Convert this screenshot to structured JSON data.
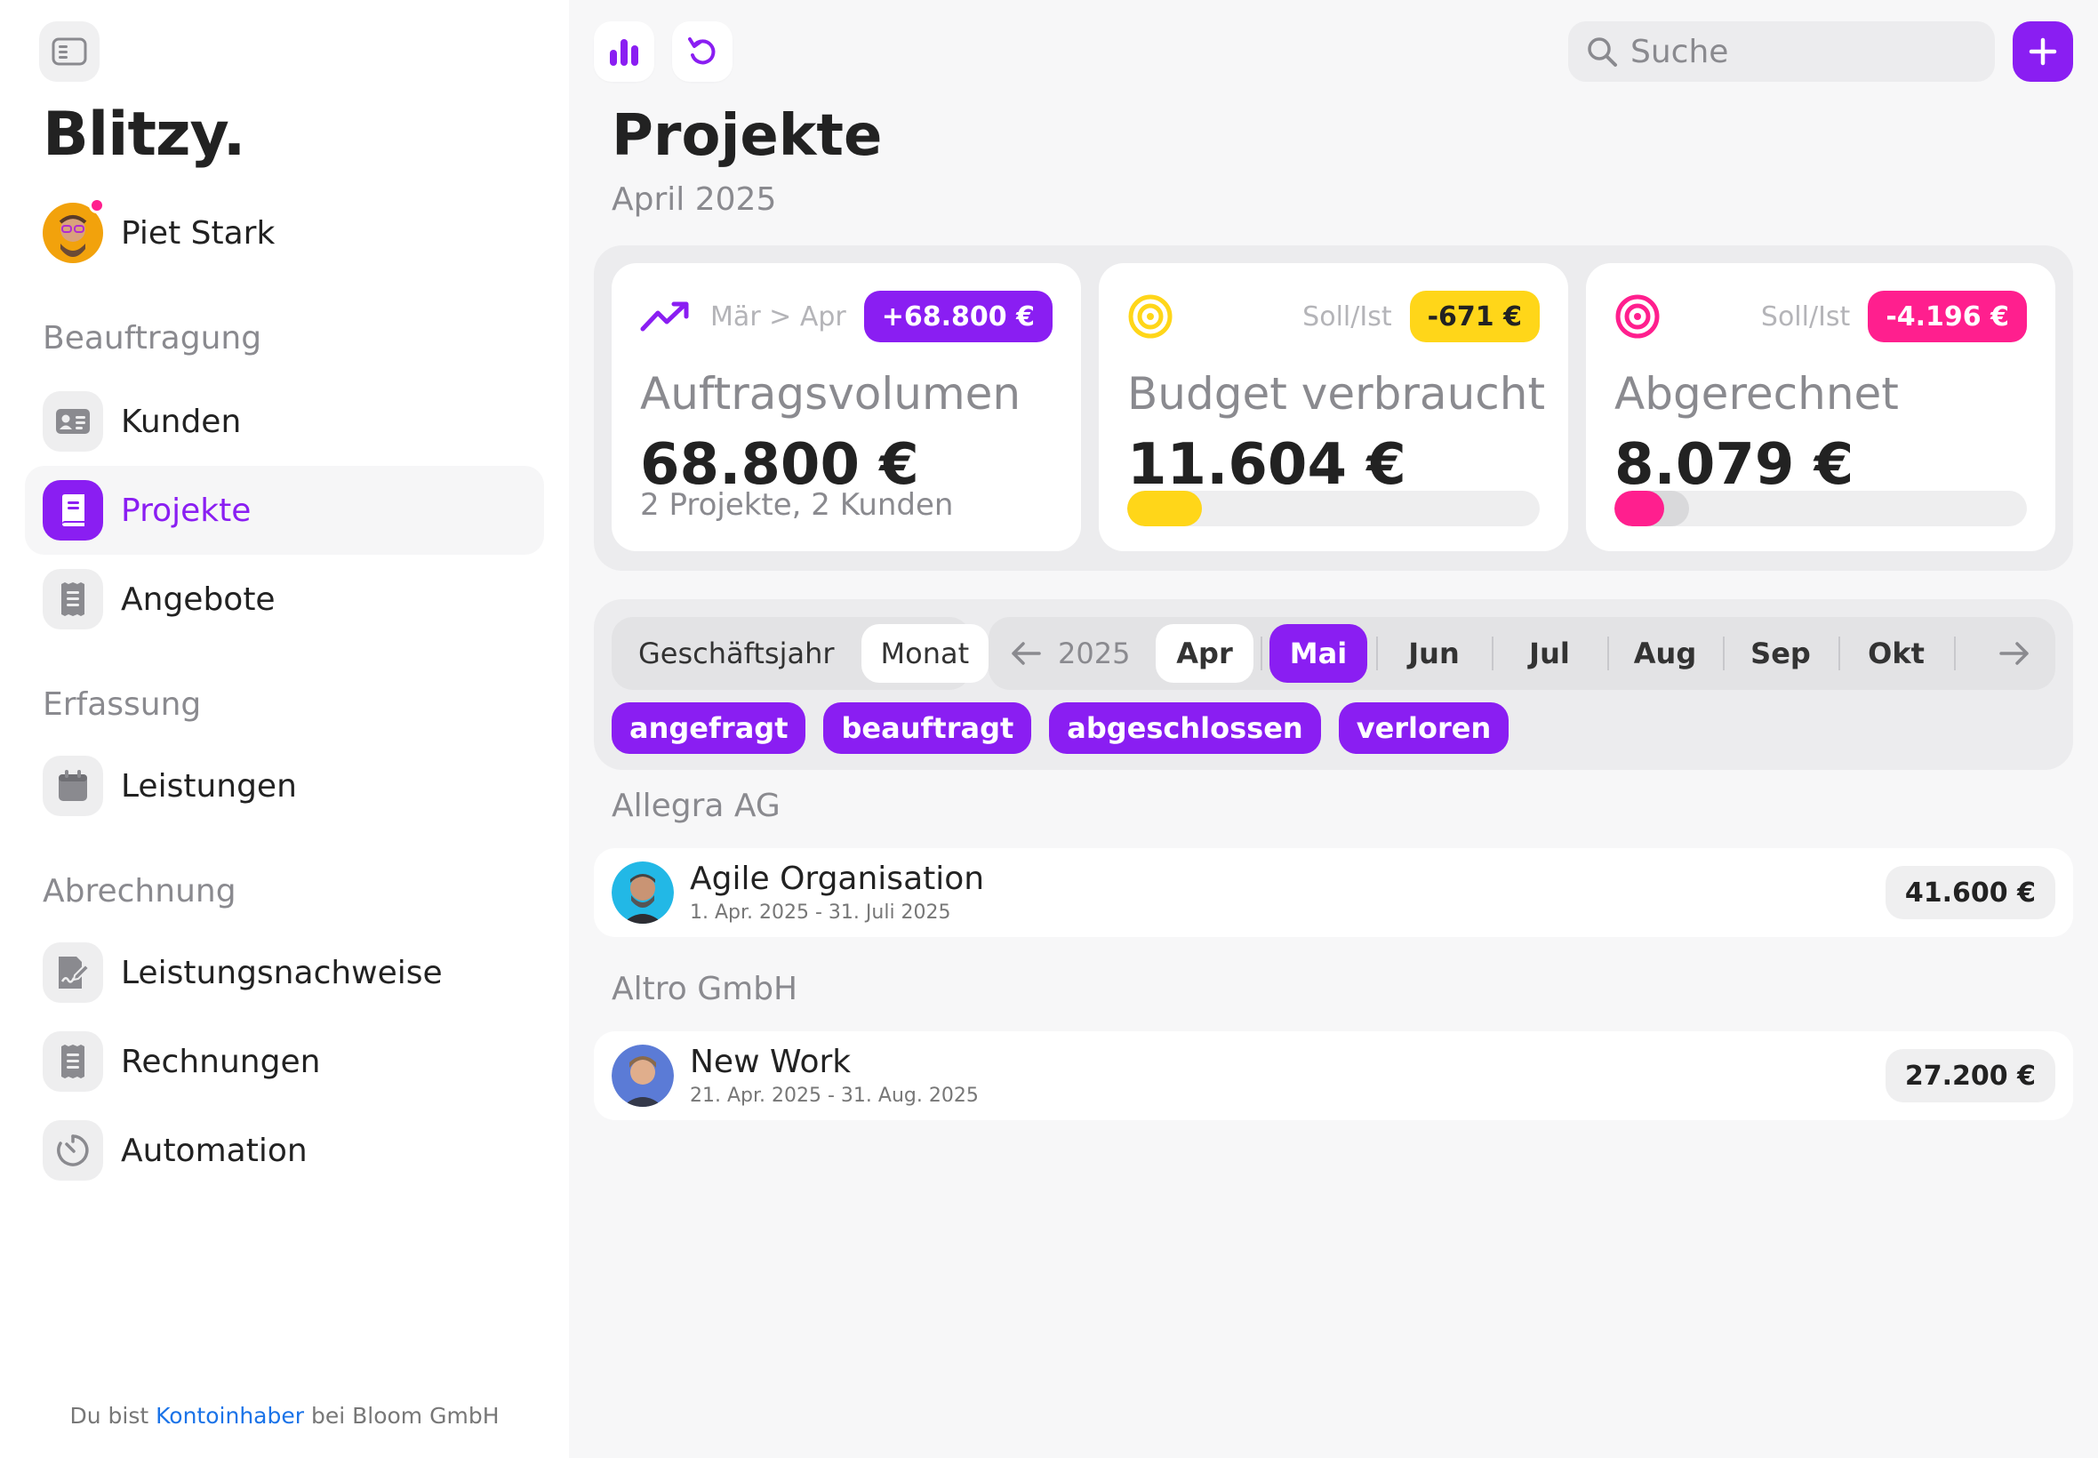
{
  "app": {
    "brand": "Blitzy.",
    "user_name": "Piet Stark"
  },
  "sidebar": {
    "sections": [
      {
        "title": "Beauftragung",
        "items": [
          {
            "label": "Kunden",
            "icon": "contact-card-icon"
          },
          {
            "label": "Projekte",
            "icon": "book-icon",
            "active": true
          },
          {
            "label": "Angebote",
            "icon": "receipt-icon"
          }
        ]
      },
      {
        "title": "Erfassung",
        "items": [
          {
            "label": "Leistungen",
            "icon": "calendar-icon"
          }
        ]
      },
      {
        "title": "Abrechnung",
        "items": [
          {
            "label": "Leistungsnachweise",
            "icon": "signed-document-icon"
          },
          {
            "label": "Rechnungen",
            "icon": "receipt-icon"
          },
          {
            "label": "Automation",
            "icon": "timer-icon"
          }
        ]
      }
    ],
    "footer": {
      "prefix": "Du bist",
      "role": "Kontoinhaber",
      "suffix": "bei Bloom GmbH"
    }
  },
  "topbar": {
    "search_placeholder": "Suche"
  },
  "page": {
    "title": "Projekte",
    "subtitle": "April 2025"
  },
  "kpis": [
    {
      "icon": "trend-up-icon",
      "compare": "Mär > Apr",
      "badge": "+68.800 €",
      "badge_bg": "#8a1ef2",
      "badge_color": "#ffffff",
      "title": "Auftragsvolumen",
      "value": "68.800 €",
      "sub": "2 Projekte, 2 Kunden"
    },
    {
      "icon": "target-icon",
      "compare": "Soll/Ist",
      "badge": "-671 €",
      "badge_bg": "#ffd619",
      "badge_color": "#222222",
      "title": "Budget verbraucht",
      "value": "11.604 €",
      "progress": 0.18,
      "progress_overflow": 0.18,
      "progress_color": "#ffd619"
    },
    {
      "icon": "target-icon",
      "compare": "Soll/Ist",
      "badge": "-4.196 €",
      "badge_bg": "#ff1f8e",
      "badge_color": "#ffffff",
      "title": "Abgerechnet",
      "value": "8.079 €",
      "progress": 0.12,
      "progress_overflow": 0.18,
      "progress_color": "#ff1f8e"
    }
  ],
  "filters": {
    "period_modes": [
      {
        "label": "Geschäftsjahr",
        "active": false
      },
      {
        "label": "Monat",
        "active": true
      }
    ],
    "year": "2025",
    "months": [
      {
        "label": "Apr",
        "state": "current"
      },
      {
        "label": "Mai",
        "state": "selected"
      },
      {
        "label": "Jun"
      },
      {
        "label": "Jul"
      },
      {
        "label": "Aug"
      },
      {
        "label": "Sep"
      },
      {
        "label": "Okt"
      }
    ],
    "statuses": [
      "angefragt",
      "beauftragt",
      "abgeschlossen",
      "verloren"
    ]
  },
  "groups": [
    {
      "client": "Allegra AG",
      "projects": [
        {
          "name": "Agile Organisation",
          "dates": "1. Apr. 2025 - 31. Juli 2025",
          "amount": "41.600 €",
          "avatar_bg": "#22b8e6"
        }
      ]
    },
    {
      "client": "Altro GmbH",
      "projects": [
        {
          "name": "New Work",
          "dates": "21. Apr. 2025 - 31. Aug. 2025",
          "amount": "27.200 €",
          "avatar_bg": "#5b7bd6"
        }
      ]
    }
  ]
}
